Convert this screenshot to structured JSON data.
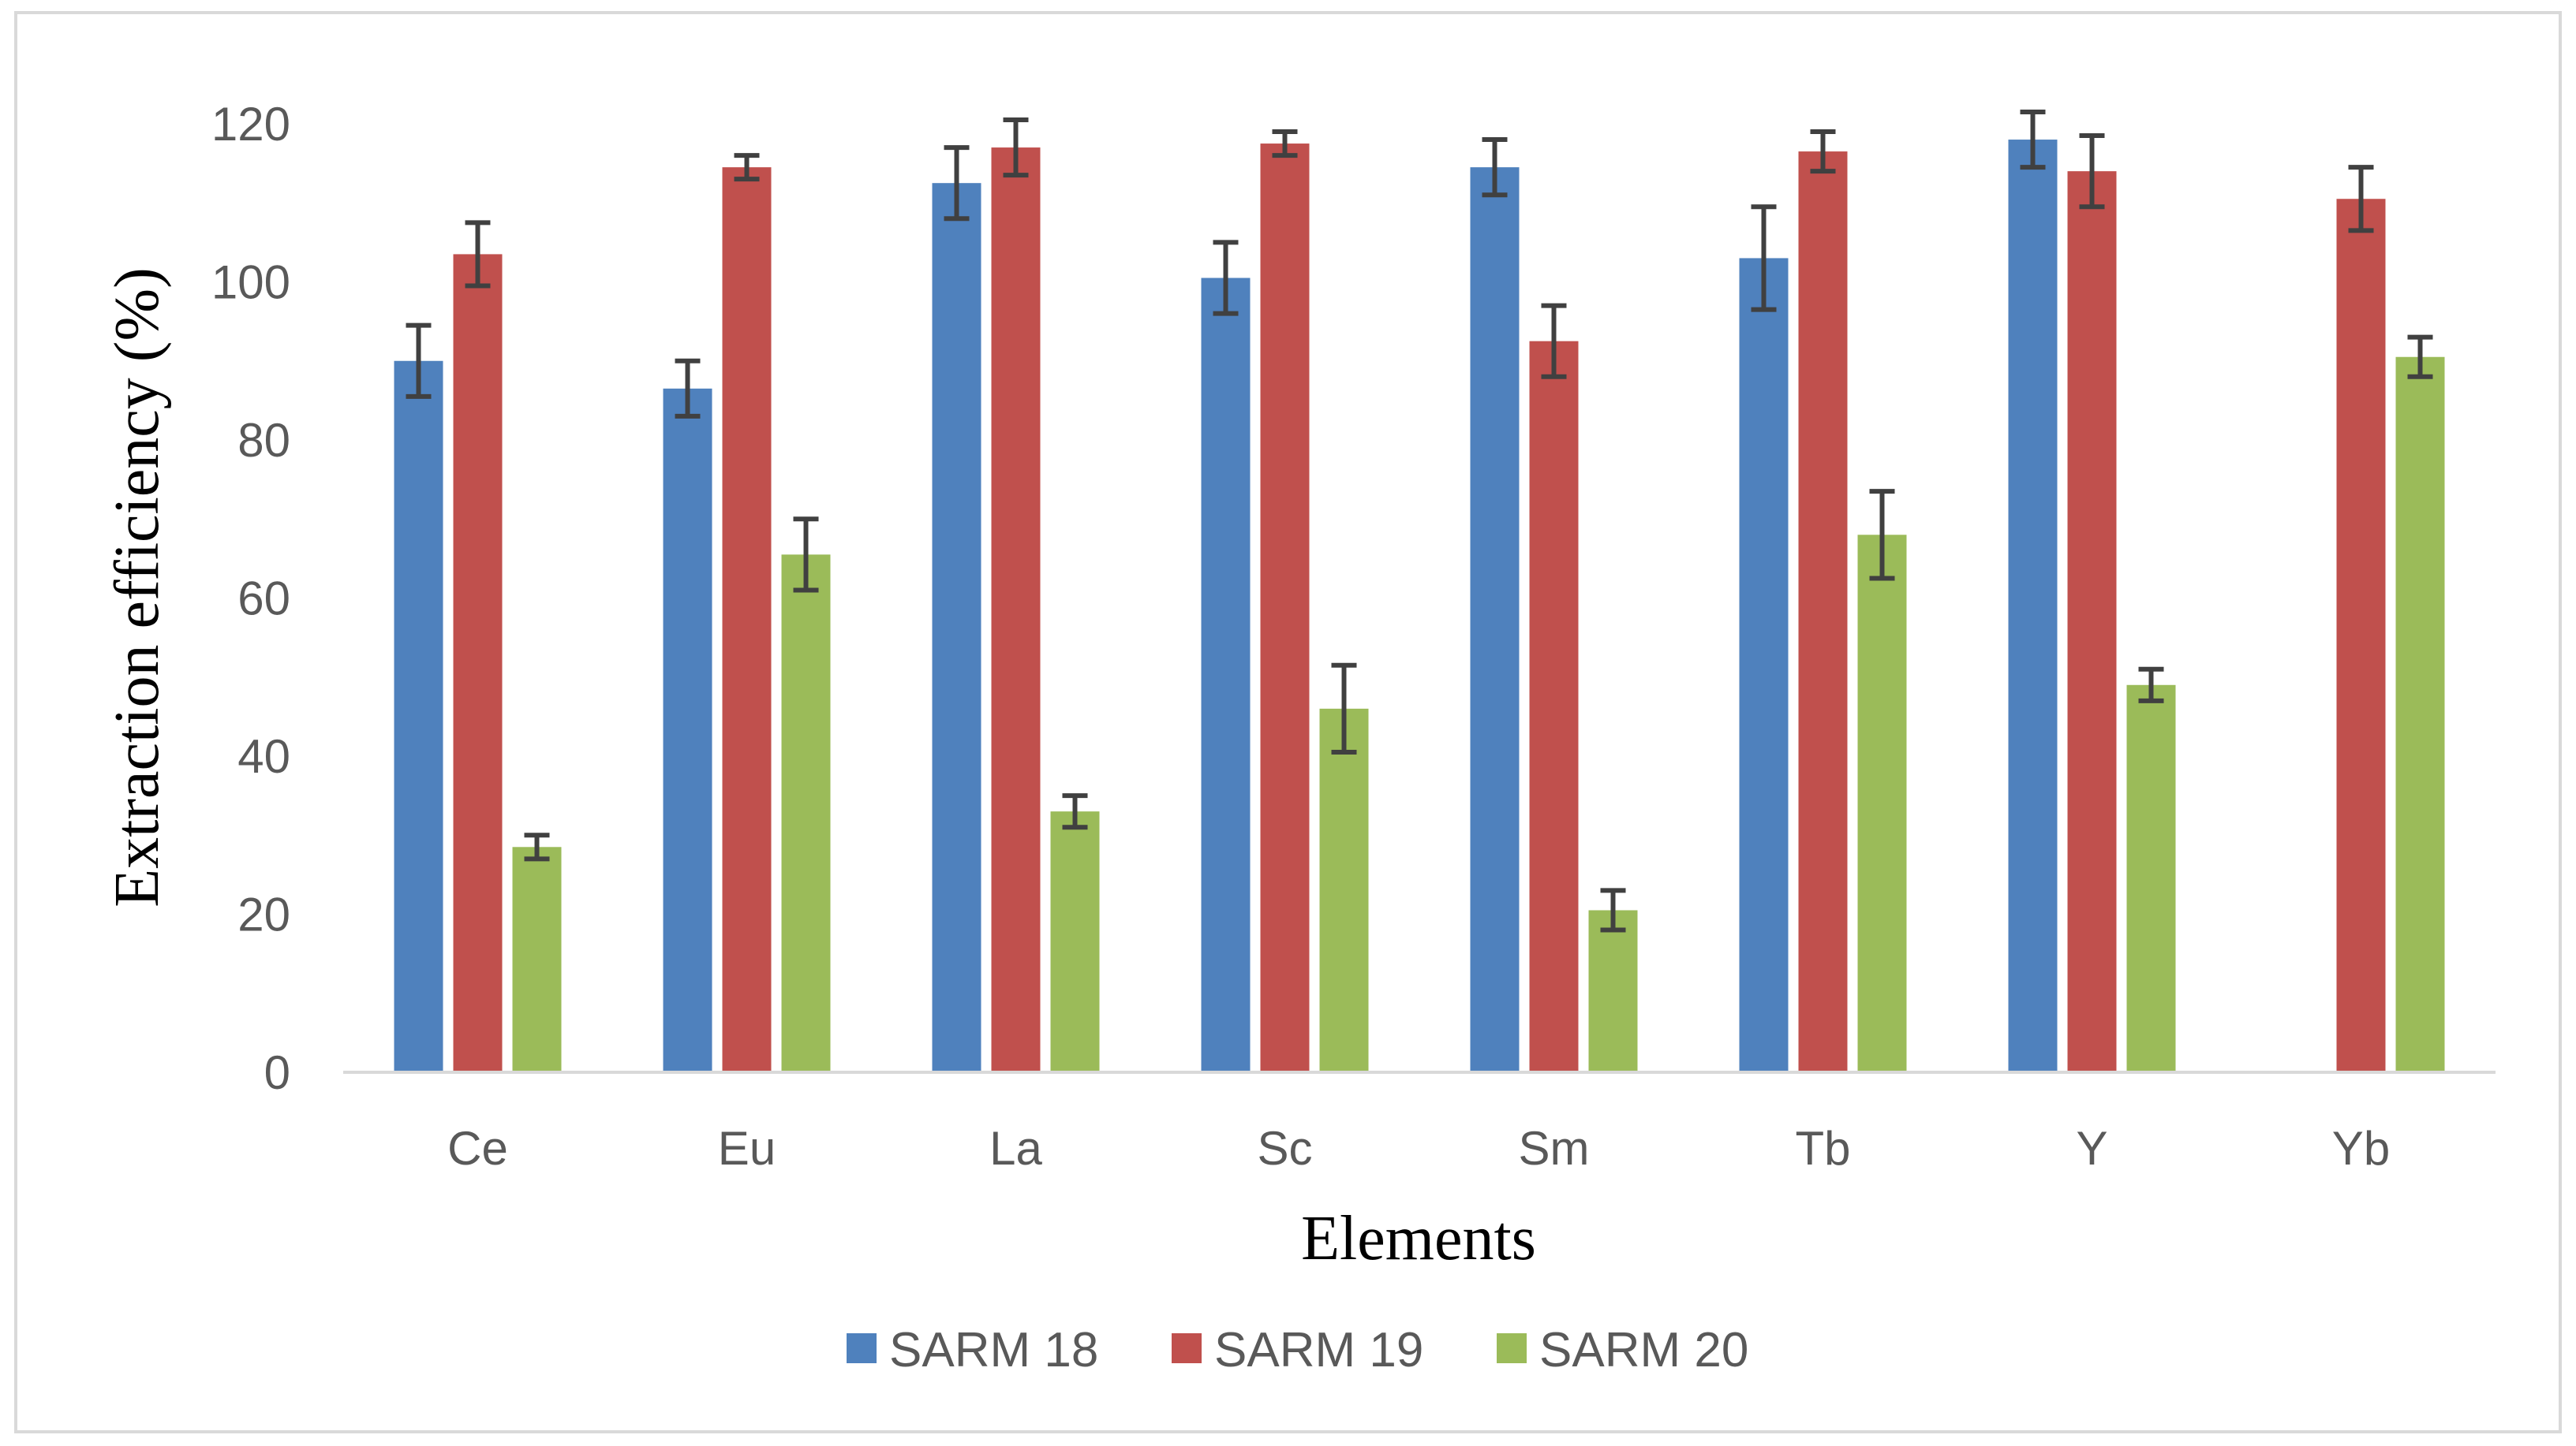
{
  "chart_data": {
    "type": "bar",
    "title": "",
    "xlabel": "Elements",
    "ylabel": "Extraction efficiency (%)",
    "ylim": [
      0,
      120
    ],
    "yticks": [
      0,
      20,
      40,
      60,
      80,
      100,
      120
    ],
    "ytick_labels": [
      "0",
      "20",
      "40",
      "60",
      "80",
      "100",
      "120"
    ],
    "categories": [
      "Ce",
      "Eu",
      "La",
      "Sc",
      "Sm",
      "Tb",
      "Y",
      "Yb"
    ],
    "legend_position": "bottom",
    "grid": false,
    "series": [
      {
        "name": "SARM 18",
        "color": "#4f81bd",
        "values": [
          90,
          86.5,
          112.5,
          100.5,
          114.5,
          103,
          118,
          null
        ],
        "errors": [
          4.5,
          3.5,
          4.5,
          4.5,
          3.5,
          6.5,
          3.5,
          null
        ]
      },
      {
        "name": "SARM 19",
        "color": "#c0504d",
        "values": [
          103.5,
          114.5,
          117,
          117.5,
          92.5,
          116.5,
          114,
          110.5
        ],
        "errors": [
          4,
          1.5,
          3.5,
          1.5,
          4.5,
          2.5,
          4.5,
          4
        ]
      },
      {
        "name": "SARM 20",
        "color": "#9bbb59",
        "values": [
          28.5,
          65.5,
          33,
          46,
          20.5,
          68,
          49,
          90.5
        ],
        "errors": [
          1.5,
          4.5,
          2,
          5.5,
          2.5,
          5.5,
          2,
          2.5
        ]
      }
    ]
  }
}
